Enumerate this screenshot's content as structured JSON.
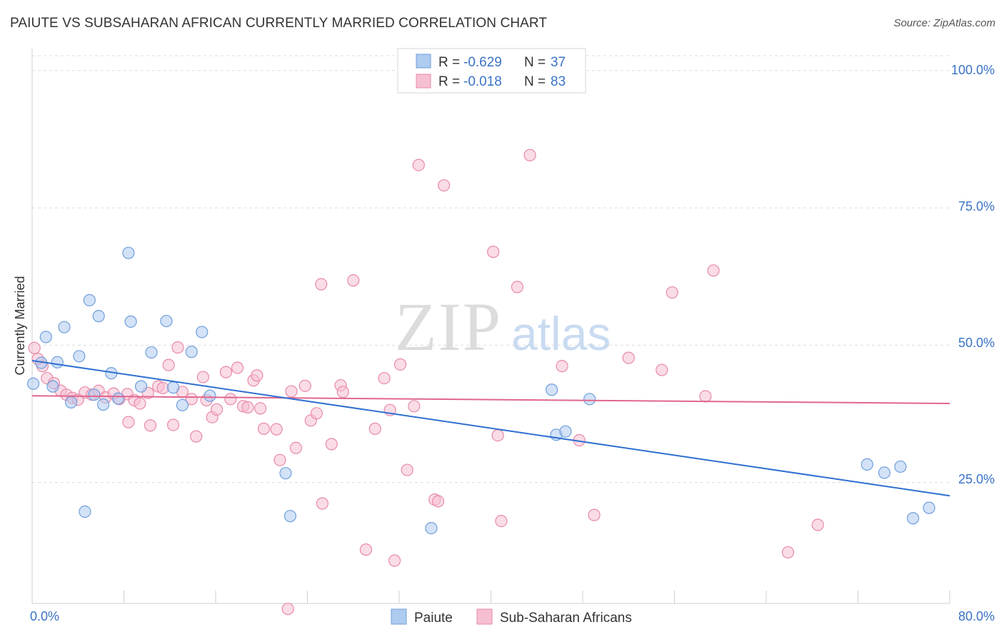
{
  "title": "PAIUTE VS SUBSAHARAN AFRICAN CURRENTLY MARRIED CORRELATION CHART",
  "source": "Source: ZipAtlas.com",
  "watermark": {
    "zip": "ZIP",
    "atlas": "atlas"
  },
  "colors": {
    "blue_fill": "#aecbf0",
    "blue_stroke": "#6f9fdc",
    "blue_line": "#2f6fd0",
    "pink_fill": "#f6bfd1",
    "pink_stroke": "#e88aa8",
    "pink_line": "#e0668f",
    "axis_text": "#3a73c7",
    "grid": "#dcdcdc"
  },
  "legend": {
    "rows": [
      {
        "r_label": "R = ",
        "r_value": "-0.629",
        "n_label": "N = ",
        "n_value": "37"
      },
      {
        "r_label": "R = ",
        "r_value": "-0.018",
        "n_label": "N = ",
        "n_value": "83"
      }
    ]
  },
  "bottom_legend": [
    "Paiute",
    "Sub-Saharan Africans"
  ],
  "chart_data": {
    "type": "scatter",
    "title": "PAIUTE VS SUBSAHARAN AFRICAN CURRENTLY MARRIED CORRELATION CHART",
    "xlabel": "",
    "ylabel": "Currently Married",
    "xlim": [
      0,
      80
    ],
    "ylim": [
      3,
      104
    ],
    "x_tick_labels": [
      "0.0%",
      "80.0%"
    ],
    "y_tick_labels": [
      "25.0%",
      "50.0%",
      "75.0%",
      "100.0%"
    ],
    "y_ticks": [
      25,
      50,
      75,
      100
    ],
    "grid": true,
    "legend_position": "top-center",
    "series": [
      {
        "name": "Paiute",
        "color": "#aecbf0",
        "trend": {
          "x": [
            0,
            80
          ],
          "y": [
            47.2,
            22.6
          ]
        },
        "points": [
          [
            0.1,
            43.0
          ],
          [
            0.8,
            46.8
          ],
          [
            1.2,
            51.5
          ],
          [
            1.8,
            42.5
          ],
          [
            2.2,
            46.9
          ],
          [
            2.8,
            53.3
          ],
          [
            3.4,
            39.6
          ],
          [
            4.1,
            48.0
          ],
          [
            4.6,
            19.7
          ],
          [
            5.0,
            58.2
          ],
          [
            5.4,
            41.0
          ],
          [
            5.8,
            55.3
          ],
          [
            6.2,
            39.2
          ],
          [
            6.9,
            44.9
          ],
          [
            7.5,
            40.3
          ],
          [
            8.4,
            66.8
          ],
          [
            8.6,
            54.3
          ],
          [
            9.5,
            42.5
          ],
          [
            10.4,
            48.7
          ],
          [
            11.7,
            54.4
          ],
          [
            12.3,
            42.3
          ],
          [
            13.1,
            39.1
          ],
          [
            13.9,
            48.8
          ],
          [
            14.8,
            52.4
          ],
          [
            15.5,
            40.8
          ],
          [
            22.1,
            26.7
          ],
          [
            22.5,
            18.9
          ],
          [
            34.8,
            16.7
          ],
          [
            45.3,
            41.9
          ],
          [
            45.7,
            33.7
          ],
          [
            46.5,
            34.3
          ],
          [
            48.6,
            40.2
          ],
          [
            72.8,
            28.3
          ],
          [
            74.3,
            26.8
          ],
          [
            75.7,
            27.9
          ],
          [
            76.8,
            18.5
          ],
          [
            78.2,
            20.4
          ]
        ]
      },
      {
        "name": "Sub-Saharan Africans",
        "color": "#f6bfd1",
        "trend": {
          "x": [
            0,
            80
          ],
          "y": [
            40.8,
            39.4
          ]
        },
        "points": [
          [
            0.2,
            49.5
          ],
          [
            0.9,
            46.2
          ],
          [
            1.3,
            44.0
          ],
          [
            1.9,
            43.1
          ],
          [
            2.5,
            41.7
          ],
          [
            3.0,
            41.0
          ],
          [
            3.5,
            40.4
          ],
          [
            4.0,
            40.1
          ],
          [
            4.6,
            41.4
          ],
          [
            5.2,
            41.0
          ],
          [
            5.8,
            41.7
          ],
          [
            6.4,
            40.5
          ],
          [
            7.1,
            41.2
          ],
          [
            7.6,
            40.2
          ],
          [
            8.3,
            41.1
          ],
          [
            8.4,
            36.0
          ],
          [
            8.9,
            40.0
          ],
          [
            9.4,
            39.4
          ],
          [
            10.1,
            41.3
          ],
          [
            10.3,
            35.4
          ],
          [
            11.0,
            42.5
          ],
          [
            11.4,
            42.2
          ],
          [
            11.9,
            46.4
          ],
          [
            12.3,
            35.5
          ],
          [
            12.7,
            49.6
          ],
          [
            13.1,
            41.5
          ],
          [
            13.9,
            40.2
          ],
          [
            14.3,
            33.4
          ],
          [
            14.9,
            44.2
          ],
          [
            15.2,
            40.0
          ],
          [
            15.7,
            36.9
          ],
          [
            16.1,
            38.3
          ],
          [
            16.9,
            45.1
          ],
          [
            17.3,
            40.2
          ],
          [
            17.9,
            45.9
          ],
          [
            18.4,
            38.9
          ],
          [
            18.8,
            38.7
          ],
          [
            19.3,
            43.6
          ],
          [
            19.6,
            44.5
          ],
          [
            19.9,
            38.5
          ],
          [
            20.2,
            34.8
          ],
          [
            21.3,
            34.7
          ],
          [
            21.6,
            29.1
          ],
          [
            22.3,
            2.0
          ],
          [
            22.6,
            41.6
          ],
          [
            23.0,
            31.3
          ],
          [
            23.8,
            42.6
          ],
          [
            24.3,
            36.3
          ],
          [
            24.8,
            37.6
          ],
          [
            25.2,
            61.1
          ],
          [
            25.3,
            21.2
          ],
          [
            26.1,
            32.0
          ],
          [
            26.9,
            42.7
          ],
          [
            27.1,
            41.5
          ],
          [
            28.0,
            61.8
          ],
          [
            29.1,
            12.8
          ],
          [
            29.9,
            34.8
          ],
          [
            30.7,
            44.0
          ],
          [
            31.2,
            38.2
          ],
          [
            31.6,
            10.8
          ],
          [
            32.1,
            46.5
          ],
          [
            32.7,
            27.3
          ],
          [
            33.3,
            38.9
          ],
          [
            33.7,
            82.8
          ],
          [
            35.1,
            21.9
          ],
          [
            35.4,
            21.6
          ],
          [
            35.9,
            79.1
          ],
          [
            40.2,
            67.0
          ],
          [
            40.6,
            33.6
          ],
          [
            40.9,
            18.0
          ],
          [
            42.3,
            60.6
          ],
          [
            43.4,
            84.6
          ],
          [
            46.2,
            46.2
          ],
          [
            47.7,
            32.7
          ],
          [
            49.0,
            19.1
          ],
          [
            52.0,
            47.7
          ],
          [
            54.9,
            45.5
          ],
          [
            55.8,
            59.6
          ],
          [
            58.7,
            40.7
          ],
          [
            59.4,
            63.6
          ],
          [
            65.9,
            12.3
          ],
          [
            68.5,
            17.3
          ],
          [
            0.5,
            47.5
          ]
        ]
      }
    ]
  }
}
